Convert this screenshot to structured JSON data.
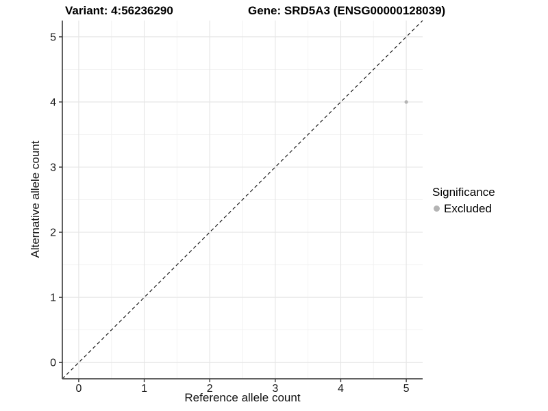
{
  "chart_data": {
    "type": "scatter",
    "titles": {
      "left": "Variant: 4:56236290",
      "right": "Gene: SRD5A3 (ENSG00000128039)"
    },
    "xlabel": "Reference allele count",
    "ylabel": "Alternative allele count",
    "xlim": [
      -0.25,
      5.25
    ],
    "ylim": [
      -0.25,
      5.25
    ],
    "xticks": [
      0,
      1,
      2,
      3,
      4,
      5
    ],
    "yticks": [
      0,
      1,
      2,
      3,
      4,
      5
    ],
    "minor_ticks": [
      0.5,
      1.5,
      2.5,
      3.5,
      4.5
    ],
    "grid": true,
    "reference_line": {
      "type": "identity",
      "style": "dashed",
      "from": [
        -0.25,
        -0.25
      ],
      "to": [
        5.25,
        5.25
      ],
      "color": "#1a1a1a"
    },
    "series": [
      {
        "name": "Excluded",
        "color": "#b4b4b4",
        "marker": "circle",
        "points": [
          {
            "x": 5,
            "y": 4
          }
        ]
      }
    ],
    "legend": {
      "title": "Significance",
      "position": "right",
      "items": [
        {
          "label": "Excluded",
          "color": "#b4b4b4",
          "marker": "circle"
        }
      ]
    },
    "colors": {
      "background": "#ffffff",
      "grid_major": "#e6e6e6",
      "grid_minor": "#f2f2f2",
      "axis_line": "#4d4d4d",
      "tick_mark": "#333333",
      "tick_label": "#1a1a1a",
      "point": "#b4b4b4"
    }
  }
}
